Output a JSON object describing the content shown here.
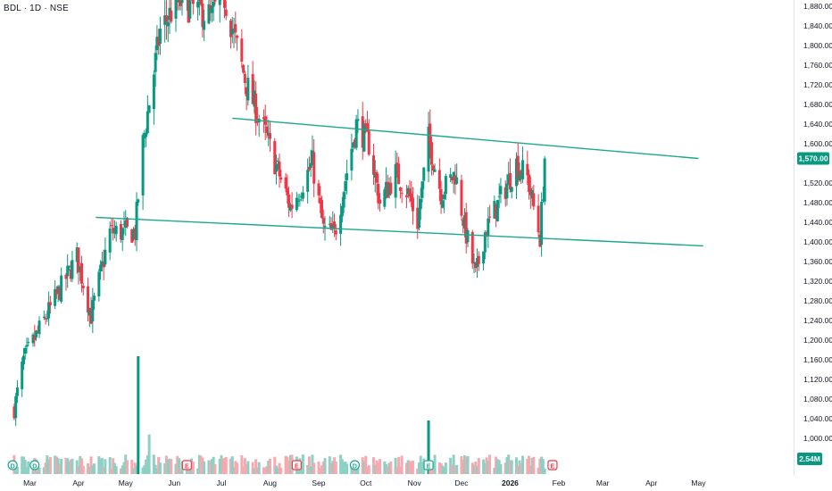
{
  "header": {
    "ticker": "BDL · 1D · NSE"
  },
  "colors": {
    "up": "#089981",
    "down": "#F23645",
    "trendline": "#1BA88F",
    "background": "#ffffff"
  },
  "chart_data": {
    "type": "candlestick",
    "symbol": "BDL",
    "interval": "1D",
    "exchange": "NSE",
    "y_axis": {
      "side": "right",
      "ticks": [
        "1,880.00",
        "1,840.00",
        "1,800.00",
        "1,760.00",
        "1,720.00",
        "1,680.00",
        "1,640.00",
        "1,600.00",
        "1,520.00",
        "1,480.00",
        "1,440.00",
        "1,400.00",
        "1,360.00",
        "1,320.00",
        "1,280.00",
        "1,240.00",
        "1,200.00",
        "1,160.00",
        "1,120.00",
        "1,080.00",
        "1,040.00",
        "1,000.00"
      ],
      "tick_values": [
        1880,
        1840,
        1800,
        1760,
        1720,
        1680,
        1640,
        1600,
        1520,
        1480,
        1440,
        1400,
        1360,
        1320,
        1280,
        1240,
        1200,
        1160,
        1120,
        1080,
        1040,
        1000
      ],
      "range": [
        978,
        1900
      ]
    },
    "x_axis": {
      "labels": [
        "Mar",
        "Apr",
        "May",
        "Jun",
        "Jul",
        "Aug",
        "Sep",
        "Oct",
        "Nov",
        "Dec",
        "2026",
        "Feb",
        "Mar",
        "Apr",
        "May"
      ],
      "bold_label": "2026"
    },
    "last_price": {
      "label": "1,570.00",
      "value": 1570
    },
    "volume_badge": "2.54M",
    "trendlines": [
      {
        "start": [
          "2025-07-08",
          1652
        ],
        "end": [
          "2026-05-01",
          1570
        ]
      },
      {
        "start": [
          "2025-04-12",
          1450
        ],
        "end": [
          "2026-05-04",
          1392
        ]
      }
    ],
    "anchors": [
      {
        "date": "2025-02-25",
        "price": 1160
      },
      {
        "date": "2025-03-31",
        "price": 1370
      },
      {
        "date": "2025-04-09",
        "price": 1250
      },
      {
        "date": "2025-04-21",
        "price": 1420
      },
      {
        "date": "2025-05-07",
        "price": 1420
      },
      {
        "date": "2025-05-12",
        "price": 1600
      },
      {
        "date": "2025-05-23",
        "price": 1830
      },
      {
        "date": "2025-06-03",
        "price": 1890
      },
      {
        "date": "2025-06-25",
        "price": 1860
      },
      {
        "date": "2025-07-02",
        "price": 1910
      },
      {
        "date": "2025-07-17",
        "price": 1720
      },
      {
        "date": "2025-07-29",
        "price": 1620
      },
      {
        "date": "2025-08-14",
        "price": 1470
      },
      {
        "date": "2025-08-28",
        "price": 1560
      },
      {
        "date": "2025-09-04",
        "price": 1425
      },
      {
        "date": "2025-09-11",
        "price": 1415
      },
      {
        "date": "2025-09-25",
        "price": 1640
      },
      {
        "date": "2025-10-03",
        "price": 1600
      },
      {
        "date": "2025-10-10",
        "price": 1480
      },
      {
        "date": "2025-10-20",
        "price": 1540
      },
      {
        "date": "2025-10-28",
        "price": 1500
      },
      {
        "date": "2025-11-03",
        "price": 1440
      },
      {
        "date": "2025-11-10",
        "price": 1610
      },
      {
        "date": "2025-11-18",
        "price": 1500
      },
      {
        "date": "2025-11-27",
        "price": 1540
      },
      {
        "date": "2025-12-03",
        "price": 1430
      },
      {
        "date": "2025-12-10",
        "price": 1330
      },
      {
        "date": "2025-12-16",
        "price": 1420
      },
      {
        "date": "2025-12-26",
        "price": 1490
      },
      {
        "date": "2026-01-05",
        "price": 1560
      },
      {
        "date": "2026-01-12",
        "price": 1530
      },
      {
        "date": "2026-01-20",
        "price": 1410
      },
      {
        "date": "2026-01-23",
        "price": 1560
      }
    ],
    "volume": {
      "peak_dates": [
        "2025-05-09",
        "2025-11-10"
      ]
    },
    "event_markers": [
      {
        "date": "2025-02-18",
        "type": "D",
        "color": "#1BA88F"
      },
      {
        "date": "2025-03-04",
        "type": "D",
        "color": "#1BA88F"
      },
      {
        "date": "2025-06-09",
        "type": "E",
        "color": "#F23645"
      },
      {
        "date": "2025-08-18",
        "type": "E",
        "color": "#F23645"
      },
      {
        "date": "2025-09-24",
        "type": "D",
        "color": "#1BA88F"
      },
      {
        "date": "2025-11-10",
        "type": "E",
        "color": "#1BA88F"
      },
      {
        "date": "2026-01-28",
        "type": "E",
        "color": "#F23645"
      }
    ]
  }
}
